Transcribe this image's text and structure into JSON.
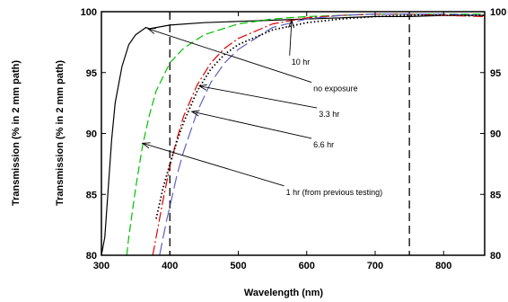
{
  "chart_data": {
    "type": "line",
    "xlabel": "Wavelength (nm)",
    "ylabel_outer": "Transmission (% in 2 mm path)",
    "ylabel_inner": "Transmission (% in 2 mm path)",
    "xlim": [
      300,
      860
    ],
    "ylim": [
      80,
      100
    ],
    "xticks": [
      300,
      400,
      500,
      600,
      700,
      800
    ],
    "yticks": [
      80,
      85,
      90,
      95,
      100
    ],
    "grid": false,
    "legend": "none",
    "reference_lines_x": [
      400,
      750
    ],
    "series": [
      {
        "name": "no exposure",
        "color": "#000000",
        "style": "solid",
        "x": [
          300,
          305,
          310,
          315,
          320,
          330,
          340,
          350,
          360,
          365,
          370,
          380,
          400,
          450,
          500,
          550,
          600,
          650,
          700,
          750,
          800,
          860
        ],
        "y": [
          80.0,
          81.5,
          85.5,
          89.5,
          92.5,
          95.5,
          97.3,
          98.1,
          98.5,
          98.7,
          98.6,
          98.7,
          98.9,
          99.1,
          99.2,
          99.3,
          99.4,
          99.5,
          99.6,
          99.6,
          99.7,
          99.7
        ]
      },
      {
        "name": "1 hr (from previous testing)",
        "color": "#00c000",
        "style": "dashed",
        "x": [
          337,
          340,
          350,
          360,
          370,
          380,
          400,
          420,
          450,
          500,
          550,
          600,
          650,
          700,
          750,
          800,
          860
        ],
        "y": [
          80.0,
          81.5,
          85.5,
          89.0,
          91.5,
          93.5,
          95.8,
          97.0,
          98.1,
          99.0,
          99.4,
          99.6,
          99.7,
          99.8,
          99.8,
          99.8,
          99.8
        ]
      },
      {
        "name": "3.3 hr",
        "color": "#e00000",
        "style": "dashdot",
        "x": [
          375,
          380,
          390,
          400,
          410,
          420,
          440,
          460,
          480,
          500,
          550,
          600,
          650,
          700,
          750,
          800,
          860
        ],
        "y": [
          80.0,
          81.5,
          84.5,
          87.3,
          89.5,
          91.4,
          94.0,
          95.8,
          97.0,
          97.8,
          99.0,
          99.5,
          99.7,
          99.8,
          99.8,
          99.7,
          99.6
        ]
      },
      {
        "name": "6.6 hr",
        "color": "#6060c0",
        "style": "longdash",
        "x": [
          385,
          395,
          400,
          410,
          420,
          440,
          460,
          480,
          500,
          550,
          600,
          650,
          700,
          750,
          800,
          860
        ],
        "y": [
          80.0,
          82.8,
          84.0,
          86.5,
          88.5,
          91.8,
          94.2,
          95.8,
          96.9,
          98.7,
          99.4,
          99.7,
          99.8,
          99.8,
          99.8,
          99.7
        ]
      },
      {
        "name": "10 hr",
        "color": "#000000",
        "style": "dotted",
        "x": [
          380,
          390,
          400,
          410,
          420,
          440,
          460,
          480,
          500,
          550,
          600,
          650,
          700,
          750,
          800,
          860
        ],
        "y": [
          83.0,
          85.5,
          87.5,
          89.3,
          90.9,
          93.5,
          95.3,
          96.5,
          97.3,
          98.5,
          99.1,
          99.4,
          99.6,
          99.7,
          99.7,
          99.7
        ]
      }
    ],
    "annotations": [
      {
        "text": "10 hr",
        "label_at": [
          575,
          96.4
        ],
        "arrow_to": [
          578,
          99.3
        ]
      },
      {
        "text": "no exposure",
        "label_at": [
          607,
          94.2
        ],
        "arrow_to": [
          368,
          98.6
        ]
      },
      {
        "text": "3.3 hr",
        "label_at": [
          615,
          92.1
        ],
        "arrow_to": [
          443,
          93.9
        ]
      },
      {
        "text": "6.6 hr",
        "label_at": [
          607,
          89.6
        ],
        "arrow_to": [
          432,
          91.8
        ]
      },
      {
        "text": "1 hr (from previous testing)",
        "label_at": [
          567,
          85.7
        ],
        "arrow_to": [
          360,
          89.2
        ]
      }
    ]
  }
}
